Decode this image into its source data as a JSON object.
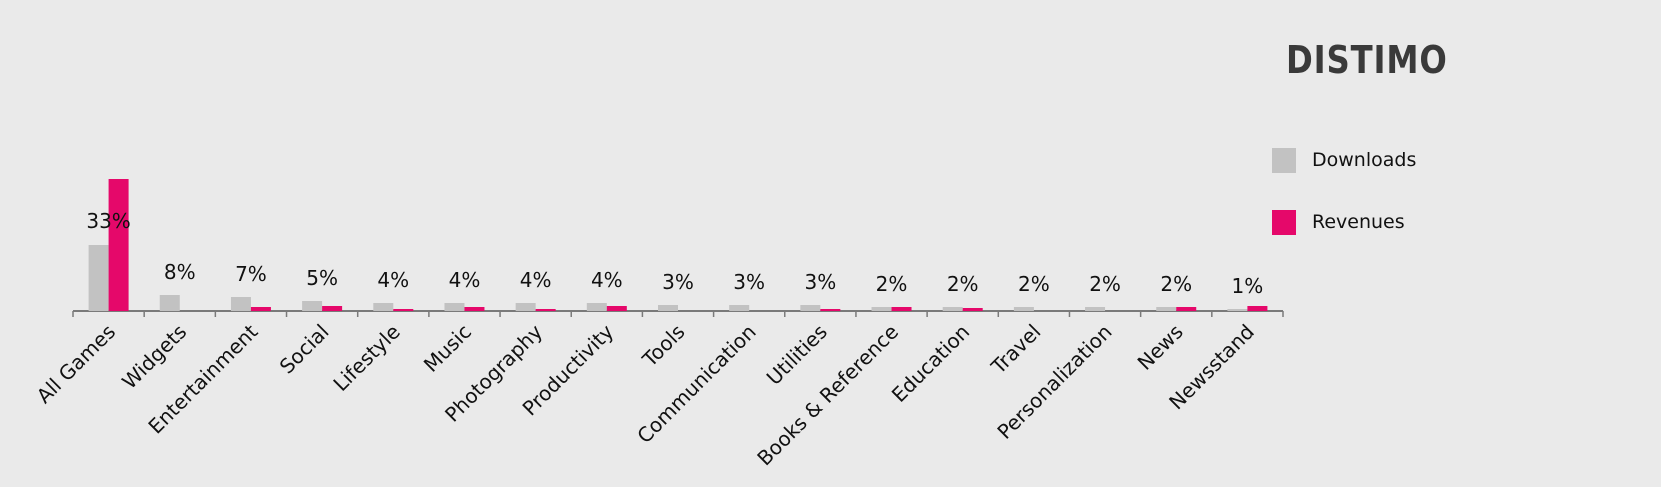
{
  "brand": {
    "logo_text": "DISTIMO"
  },
  "colors": {
    "downloads": "#c2c2c2",
    "revenues": "#e5086a",
    "axis": "#7a7a7a"
  },
  "chart_data": {
    "type": "bar",
    "categories": [
      "All Games",
      "Widgets",
      "Entertainment",
      "Social",
      "Lifestyle",
      "Music",
      "Photography",
      "Productivity",
      "Tools",
      "Communication",
      "Utilities",
      "Books & Reference",
      "Education",
      "Travel",
      "Personalization",
      "News",
      "Newsstand"
    ],
    "series": [
      {
        "name": "Downloads",
        "values": [
          33,
          8,
          7,
          5,
          4,
          4,
          4,
          4,
          3,
          3,
          3,
          2,
          2,
          2,
          2,
          2,
          1
        ]
      },
      {
        "name": "Revenues",
        "values": [
          66,
          0,
          2,
          2.5,
          1,
          2,
          1,
          2.5,
          0,
          0,
          1,
          2,
          1.5,
          0,
          0,
          2,
          2.5
        ]
      }
    ],
    "data_labels": [
      "33%",
      "8%",
      "7%",
      "5%",
      "4%",
      "4%",
      "4%",
      "4%",
      "3%",
      "3%",
      "3%",
      "2%",
      "2%",
      "2%",
      "2%",
      "2%",
      "1%"
    ],
    "title": "",
    "xlabel": "",
    "ylabel": "",
    "ylim": [
      0,
      70
    ],
    "grid": false,
    "legend_position": "right"
  },
  "legend": [
    {
      "label": "Downloads",
      "color_key": "downloads"
    },
    {
      "label": "Revenues",
      "color_key": "revenues"
    }
  ]
}
